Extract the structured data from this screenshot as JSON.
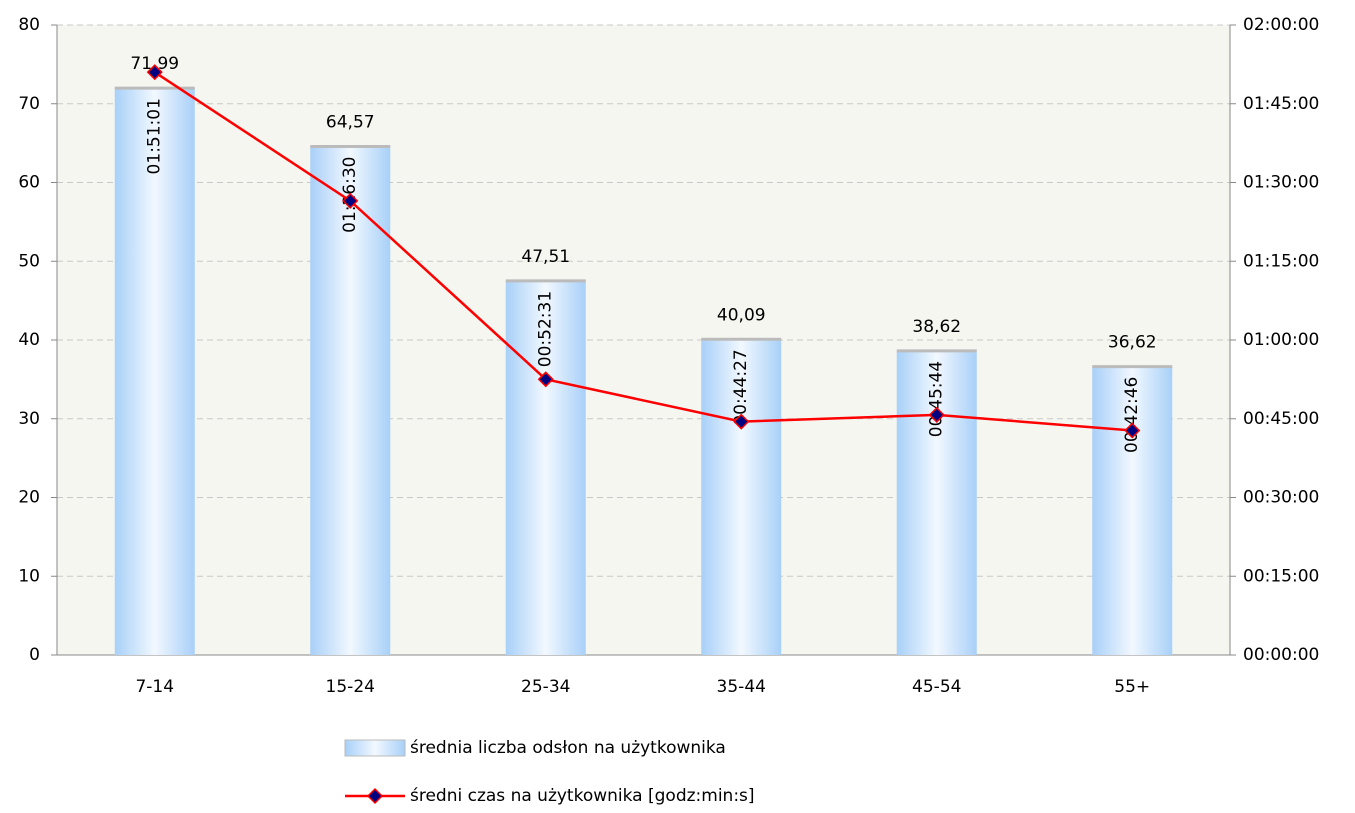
{
  "chart_data": {
    "type": "bar",
    "categories": [
      "7-14",
      "15-24",
      "25-34",
      "35-44",
      "45-54",
      "55+"
    ],
    "series": [
      {
        "name": "średnia liczba odsłon na użytkownika",
        "type": "bar",
        "color": "#a8d0f8",
        "values": [
          71.99,
          64.57,
          47.51,
          40.09,
          38.62,
          36.62
        ],
        "value_labels": [
          "71,99",
          "64,57",
          "47,51",
          "40,09",
          "38,62",
          "36,62"
        ]
      },
      {
        "name": "średni czas na użytkownika [godz:min:s]",
        "type": "line",
        "axis": "y2",
        "color": "#ff0000",
        "marker_color": "#000080",
        "values": [
          6661,
          5190,
          3151,
          2667,
          2744,
          2566
        ],
        "value_labels": [
          "01:51:01",
          "01:26:30",
          "00:52:31",
          "00:44:27",
          "00:45:44",
          "00:42:46"
        ]
      }
    ],
    "ylim": [
      0,
      80
    ],
    "yticks": [
      0,
      10,
      20,
      30,
      40,
      50,
      60,
      70,
      80
    ],
    "y2lim": [
      0,
      7200
    ],
    "y2ticks": [
      {
        "value": 0,
        "label": "00:00:00"
      },
      {
        "value": 900,
        "label": "00:15:00"
      },
      {
        "value": 1800,
        "label": "00:30:00"
      },
      {
        "value": 2700,
        "label": "00:45:00"
      },
      {
        "value": 3600,
        "label": "01:00:00"
      },
      {
        "value": 4500,
        "label": "01:15:00"
      },
      {
        "value": 5400,
        "label": "01:30:00"
      },
      {
        "value": 6300,
        "label": "01:45:00"
      },
      {
        "value": 7200,
        "label": "02:00:00"
      }
    ],
    "grid": true
  }
}
